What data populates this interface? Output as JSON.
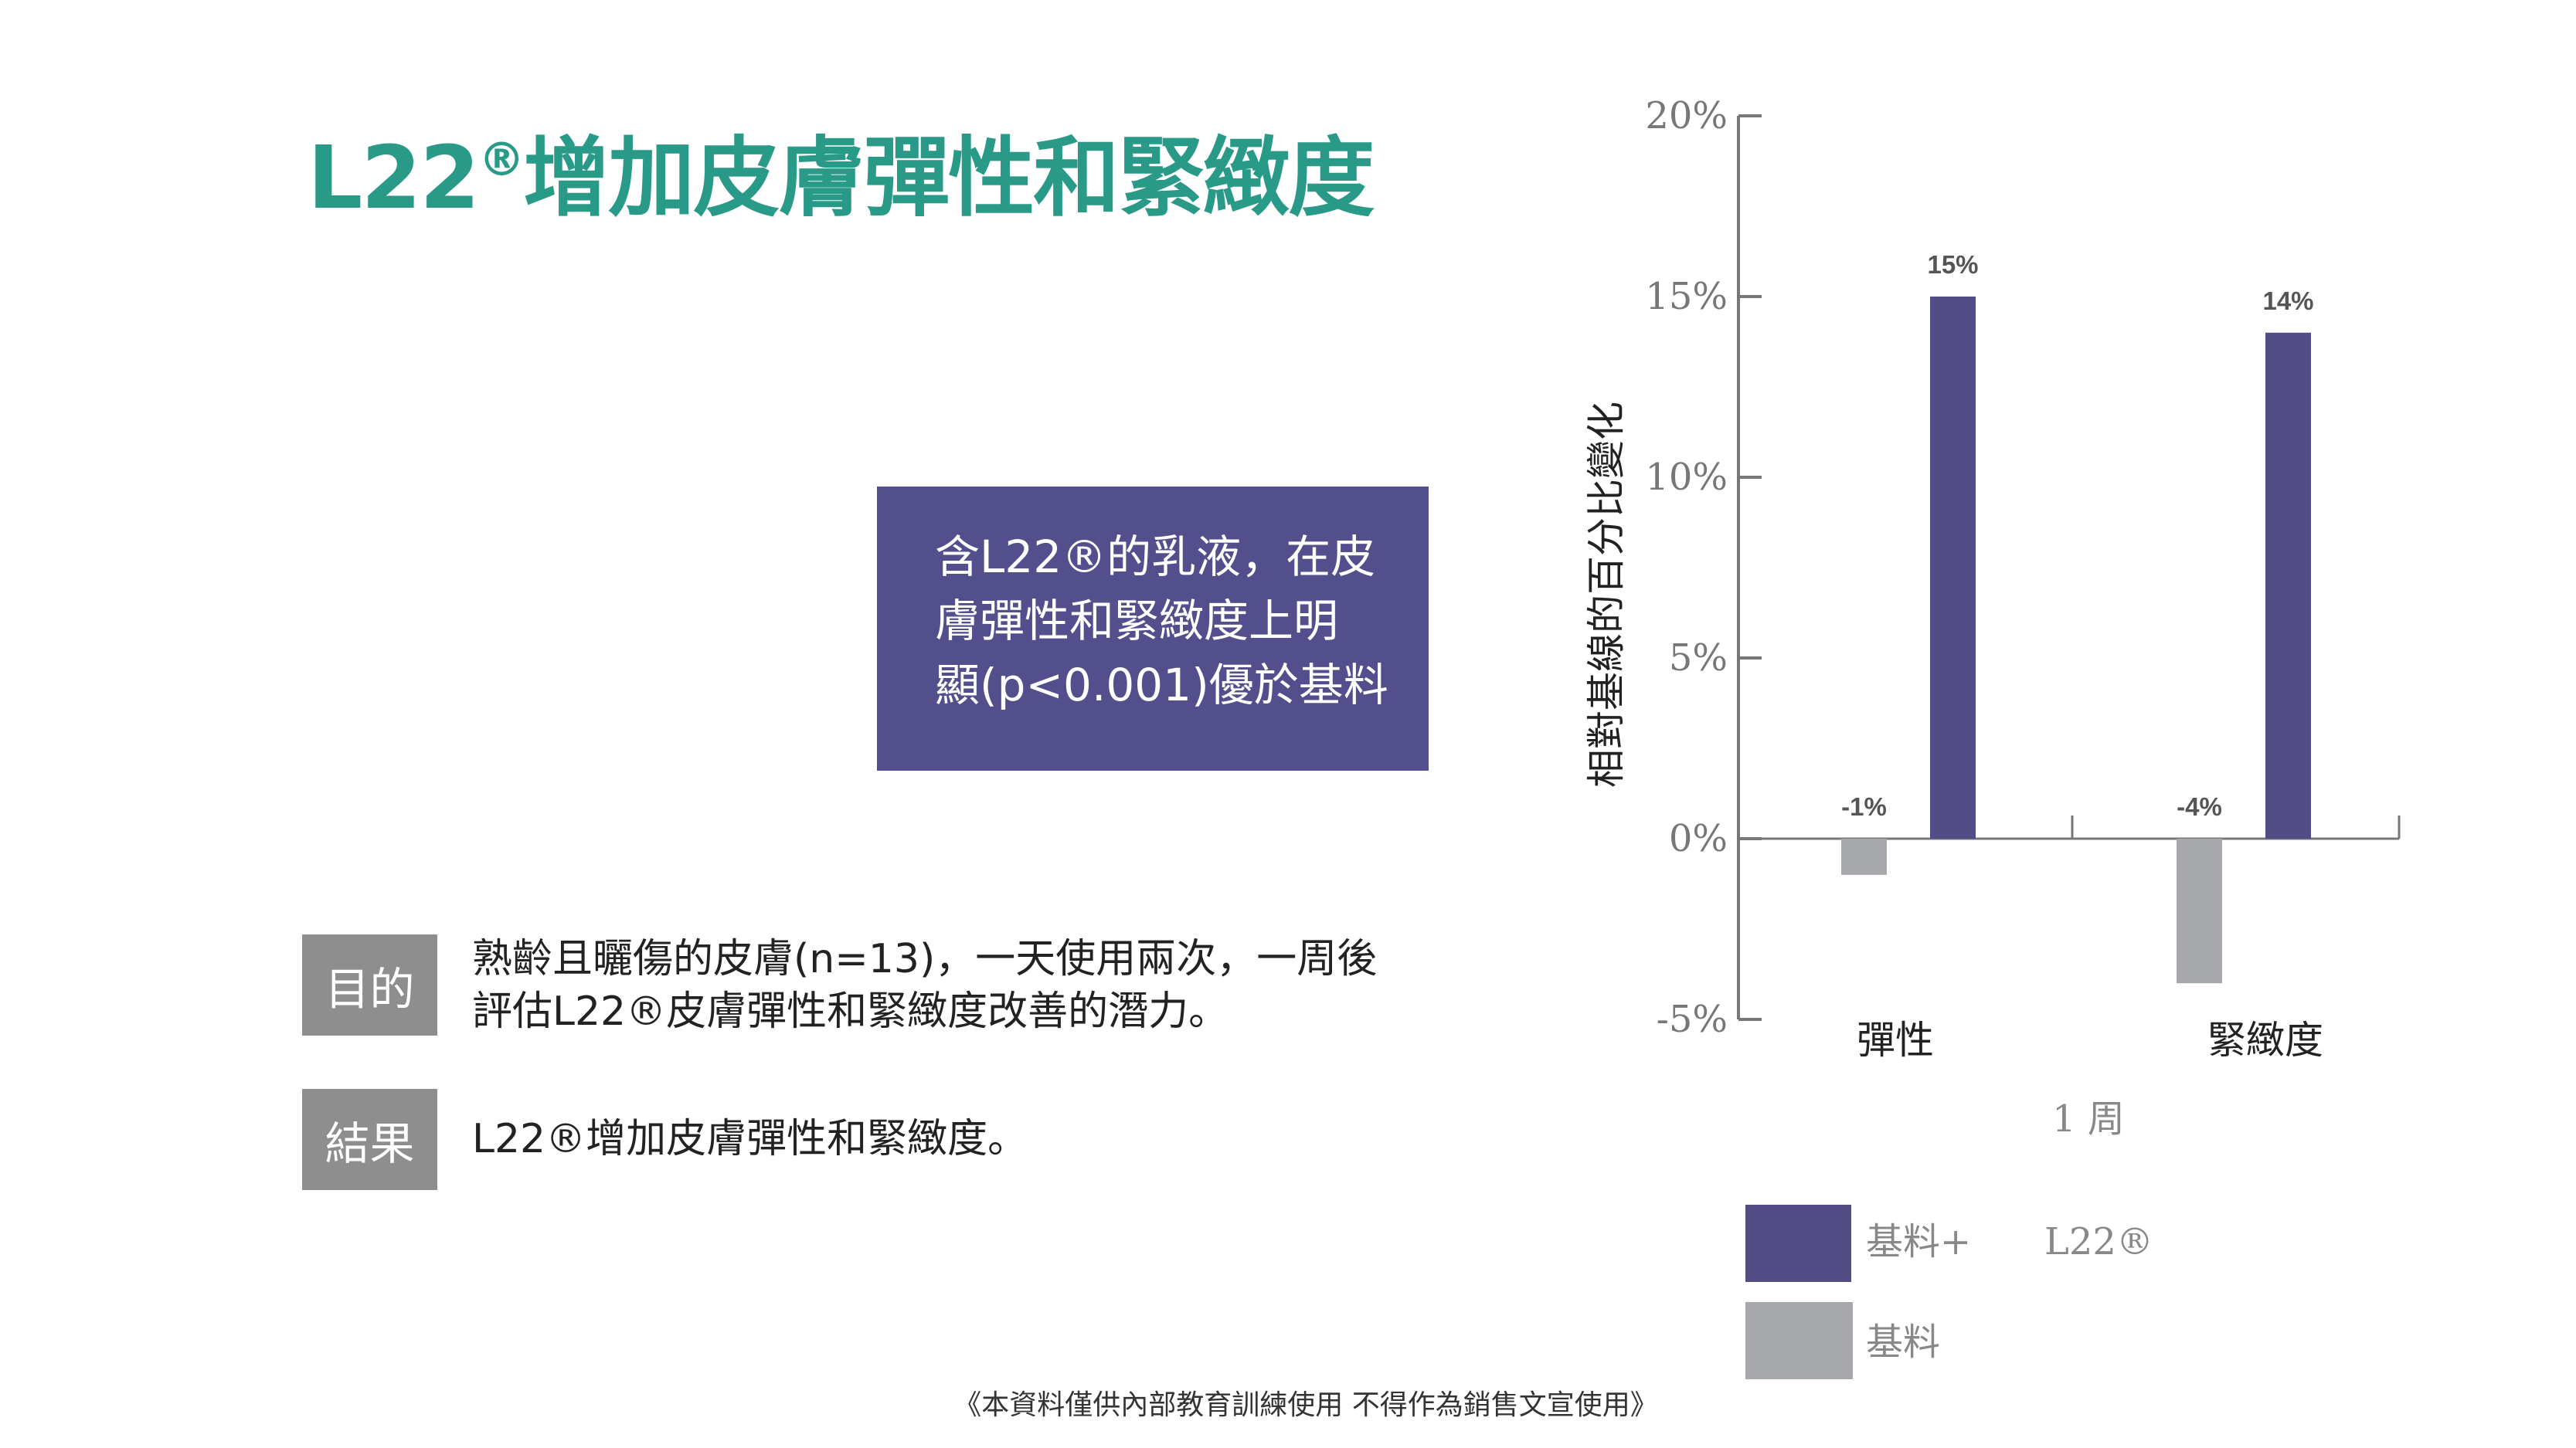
{
  "header": {
    "title_prefix": "L22",
    "title_reg": "®",
    "title_rest": "增加皮膚彈性和緊緻度"
  },
  "callout": {
    "lines": [
      "含L22®的乳液，在皮",
      "膚彈性和緊緻度上明",
      "顯(p<0.001)優於基料"
    ]
  },
  "objective": {
    "tag": "目的",
    "lines": [
      "熟齡且曬傷的皮膚(n=13)，一天使用兩次，一周後",
      "評估L22®皮膚彈性和緊緻度改善的潛力。"
    ]
  },
  "result": {
    "tag": "結果",
    "text": "L22®增加皮膚彈性和緊緻度。"
  },
  "footer": "《本資料僅供內部教育訓練使用  不得作為銷售文宣使用》",
  "colors": {
    "title": "#2a9a88",
    "l22": "#524d87",
    "base": "#a6a8ab",
    "tag": "#8e8e8e"
  },
  "chart_data": {
    "type": "bar",
    "title": "",
    "ylabel": "相對基線的百分比變化",
    "xlabel": "1 周",
    "ylim": [
      -5,
      20
    ],
    "yticks": [
      20,
      15,
      10,
      5,
      0,
      -5
    ],
    "ytick_labels": [
      "20%",
      "15%",
      "10%",
      "5%",
      "0%",
      "-5%"
    ],
    "categories": [
      "彈性",
      "緊緻度"
    ],
    "series": [
      {
        "name": "基料",
        "color": "#a6a8ab",
        "values": [
          -1,
          -4
        ],
        "labels": [
          "-1%",
          "-4%"
        ]
      },
      {
        "name": "基料+ L22®",
        "color": "#524d87",
        "values": [
          15,
          14
        ],
        "labels": [
          "15%",
          "14%"
        ]
      }
    ],
    "legend": {
      "placement": "bottom",
      "items": [
        {
          "text": "基料+",
          "suffix": "L22®"
        },
        {
          "text": "基料"
        }
      ]
    },
    "grid": false
  }
}
